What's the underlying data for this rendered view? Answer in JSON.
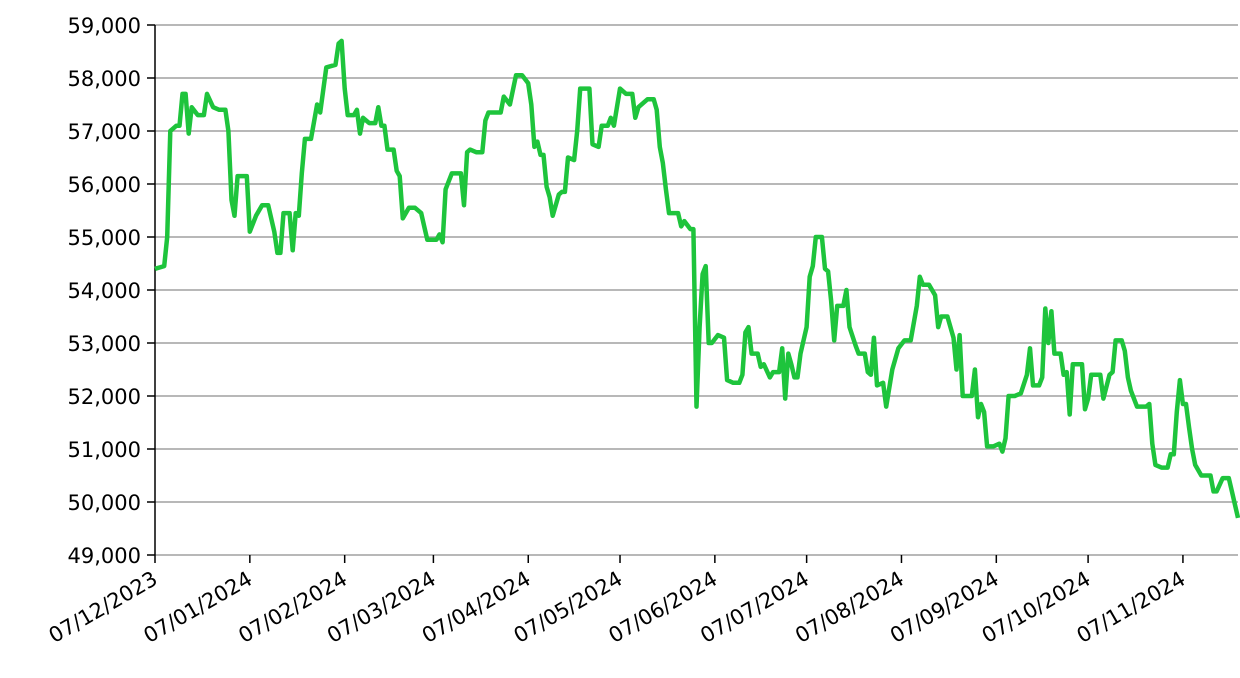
{
  "chart_data": {
    "type": "line",
    "x": [
      "2023-12-07",
      "2023-12-10",
      "2023-12-11",
      "2023-12-12",
      "2023-12-14",
      "2023-12-15",
      "2023-12-16",
      "2023-12-17",
      "2023-12-18",
      "2023-12-19",
      "2023-12-21",
      "2023-12-23",
      "2023-12-24",
      "2023-12-26",
      "2023-12-28",
      "2023-12-30",
      "2023-12-31",
      "2024-01-01",
      "2024-01-02",
      "2024-01-03",
      "2024-01-06",
      "2024-01-07",
      "2024-01-09",
      "2024-01-11",
      "2024-01-13",
      "2024-01-15",
      "2024-01-16",
      "2024-01-17",
      "2024-01-18",
      "2024-01-20",
      "2024-01-21",
      "2024-01-22",
      "2024-01-23",
      "2024-01-24",
      "2024-01-25",
      "2024-01-27",
      "2024-01-29",
      "2024-01-30",
      "2024-02-01",
      "2024-02-04",
      "2024-02-05",
      "2024-02-06",
      "2024-02-07",
      "2024-02-08",
      "2024-02-10",
      "2024-02-11",
      "2024-02-12",
      "2024-02-13",
      "2024-02-15",
      "2024-02-17",
      "2024-02-18",
      "2024-02-19",
      "2024-02-20",
      "2024-02-21",
      "2024-02-23",
      "2024-02-24",
      "2024-02-25",
      "2024-02-26",
      "2024-02-28",
      "2024-03-01",
      "2024-03-03",
      "2024-03-04",
      "2024-03-05",
      "2024-03-08",
      "2024-03-09",
      "2024-03-10",
      "2024-03-11",
      "2024-03-13",
      "2024-03-16",
      "2024-03-17",
      "2024-03-18",
      "2024-03-19",
      "2024-03-21",
      "2024-03-23",
      "2024-03-24",
      "2024-03-25",
      "2024-03-29",
      "2024-03-30",
      "2024-04-01",
      "2024-04-03",
      "2024-04-05",
      "2024-04-07",
      "2024-04-08",
      "2024-04-09",
      "2024-04-10",
      "2024-04-11",
      "2024-04-12",
      "2024-04-13",
      "2024-04-14",
      "2024-04-15",
      "2024-04-17",
      "2024-04-18",
      "2024-04-19",
      "2024-04-20",
      "2024-04-22",
      "2024-04-23",
      "2024-04-24",
      "2024-04-27",
      "2024-04-28",
      "2024-04-30",
      "2024-05-01",
      "2024-05-03",
      "2024-05-04",
      "2024-05-05",
      "2024-05-07",
      "2024-05-09",
      "2024-05-11",
      "2024-05-12",
      "2024-05-13",
      "2024-05-16",
      "2024-05-18",
      "2024-05-19",
      "2024-05-20",
      "2024-05-21",
      "2024-05-22",
      "2024-05-23",
      "2024-05-26",
      "2024-05-27",
      "2024-05-28",
      "2024-05-30",
      "2024-05-31",
      "2024-06-01",
      "2024-06-02",
      "2024-06-03",
      "2024-06-04",
      "2024-06-05",
      "2024-06-06",
      "2024-06-08",
      "2024-06-10",
      "2024-06-11",
      "2024-06-13",
      "2024-06-15",
      "2024-06-16",
      "2024-06-17",
      "2024-06-18",
      "2024-06-19",
      "2024-06-21",
      "2024-06-22",
      "2024-06-23",
      "2024-06-25",
      "2024-06-26",
      "2024-06-28",
      "2024-06-29",
      "2024-06-30",
      "2024-07-01",
      "2024-07-02",
      "2024-07-03",
      "2024-07-04",
      "2024-07-05",
      "2024-07-07",
      "2024-07-08",
      "2024-07-09",
      "2024-07-10",
      "2024-07-12",
      "2024-07-13",
      "2024-07-14",
      "2024-07-15",
      "2024-07-16",
      "2024-07-17",
      "2024-07-19",
      "2024-07-20",
      "2024-07-21",
      "2024-07-23",
      "2024-07-24",
      "2024-07-26",
      "2024-07-27",
      "2024-07-28",
      "2024-07-29",
      "2024-07-30",
      "2024-08-01",
      "2024-08-02",
      "2024-08-04",
      "2024-08-06",
      "2024-08-08",
      "2024-08-10",
      "2024-08-12",
      "2024-08-13",
      "2024-08-14",
      "2024-08-16",
      "2024-08-18",
      "2024-08-19",
      "2024-08-20",
      "2024-08-22",
      "2024-08-24",
      "2024-08-25",
      "2024-08-26",
      "2024-08-27",
      "2024-08-30",
      "2024-08-31",
      "2024-09-01",
      "2024-09-02",
      "2024-09-03",
      "2024-09-04",
      "2024-09-06",
      "2024-09-08",
      "2024-09-09",
      "2024-09-10",
      "2024-09-11",
      "2024-09-13",
      "2024-09-15",
      "2024-09-17",
      "2024-09-18",
      "2024-09-19",
      "2024-09-21",
      "2024-09-22",
      "2024-09-23",
      "2024-09-24",
      "2024-09-25",
      "2024-09-26",
      "2024-09-28",
      "2024-09-29",
      "2024-09-30",
      "2024-10-01",
      "2024-10-02",
      "2024-10-05",
      "2024-10-06",
      "2024-10-07",
      "2024-10-08",
      "2024-10-11",
      "2024-10-12",
      "2024-10-14",
      "2024-10-15",
      "2024-10-16",
      "2024-10-18",
      "2024-10-19",
      "2024-10-20",
      "2024-10-21",
      "2024-10-23",
      "2024-10-26",
      "2024-10-27",
      "2024-10-28",
      "2024-10-29",
      "2024-10-31",
      "2024-11-02",
      "2024-11-03",
      "2024-11-04",
      "2024-11-05",
      "2024-11-06",
      "2024-11-07",
      "2024-11-08",
      "2024-11-09",
      "2024-11-10",
      "2024-11-11",
      "2024-11-13",
      "2024-11-16",
      "2024-11-17",
      "2024-11-18",
      "2024-11-20",
      "2024-11-22",
      "2024-11-23",
      "2024-11-25"
    ],
    "series": [
      {
        "color": "#1ec43c",
        "values": [
          54400,
          54450,
          55000,
          57000,
          57100,
          57100,
          57700,
          57700,
          56950,
          57450,
          57300,
          57300,
          57700,
          57450,
          57400,
          57400,
          57000,
          55700,
          55400,
          56150,
          56150,
          55100,
          55400,
          55600,
          55600,
          55100,
          54700,
          54700,
          55450,
          55450,
          54750,
          55450,
          55400,
          56200,
          56850,
          56850,
          57500,
          57350,
          58200,
          58250,
          58650,
          58700,
          57800,
          57300,
          57300,
          57400,
          56950,
          57250,
          57150,
          57150,
          57450,
          57100,
          57100,
          56650,
          56650,
          56250,
          56150,
          55350,
          55550,
          55550,
          55450,
          55200,
          54950,
          54950,
          55050,
          54900,
          55900,
          56200,
          56200,
          55600,
          56600,
          56650,
          56600,
          56600,
          57200,
          57350,
          57350,
          57650,
          57500,
          58050,
          58050,
          57900,
          57500,
          56700,
          56800,
          56550,
          56550,
          55950,
          55750,
          55400,
          55800,
          55850,
          55850,
          56500,
          56450,
          57000,
          57800,
          57800,
          56750,
          56700,
          57100,
          57100,
          57250,
          57100,
          57800,
          57700,
          57700,
          57250,
          57450,
          57600,
          57600,
          57400,
          56700,
          56400,
          55900,
          55450,
          55450,
          55200,
          55300,
          55150,
          55150,
          51800,
          53300,
          54300,
          54450,
          53000,
          53000,
          53150,
          53100,
          52300,
          52250,
          52250,
          52400,
          53200,
          53300,
          52800,
          52800,
          52550,
          52600,
          52350,
          52450,
          52450,
          52900,
          51950,
          52800,
          52600,
          52350,
          52350,
          52800,
          53300,
          54250,
          54450,
          55000,
          55000,
          54400,
          54350,
          53800,
          53050,
          53700,
          53700,
          54000,
          53300,
          52950,
          52800,
          52800,
          52450,
          52400,
          53100,
          52200,
          52250,
          51800,
          52500,
          52900,
          53050,
          53050,
          53700,
          54250,
          54100,
          54100,
          53900,
          53300,
          53500,
          53500,
          53100,
          52500,
          53150,
          52000,
          52000,
          52500,
          51600,
          51850,
          51700,
          51050,
          51050,
          51100,
          50950,
          51200,
          52000,
          52000,
          52050,
          52400,
          52900,
          52200,
          52200,
          52350,
          53650,
          53000,
          53600,
          52800,
          52800,
          52400,
          52450,
          51650,
          52600,
          52600,
          51750,
          51950,
          52400,
          52400,
          51950,
          52400,
          52450,
          53050,
          53050,
          52850,
          52350,
          52100,
          51800,
          51800,
          51850,
          51100,
          50700,
          50650,
          50650,
          50900,
          50900,
          51700,
          52300,
          51850,
          51850,
          51400,
          51000,
          50700,
          50500,
          50500,
          50200,
          50200,
          50450,
          50450,
          50200,
          49700
        ]
      }
    ],
    "xlim": [
      "2023-12-07",
      "2024-11-25"
    ],
    "xticks": [
      {
        "value": "2023-12-07",
        "label": "07/12/2023"
      },
      {
        "value": "2024-01-07",
        "label": "07/01/2024"
      },
      {
        "value": "2024-02-07",
        "label": "07/02/2024"
      },
      {
        "value": "2024-03-07",
        "label": "07/03/2024"
      },
      {
        "value": "2024-04-07",
        "label": "07/04/2024"
      },
      {
        "value": "2024-05-07",
        "label": "07/05/2024"
      },
      {
        "value": "2024-06-07",
        "label": "07/06/2024"
      },
      {
        "value": "2024-07-07",
        "label": "07/07/2024"
      },
      {
        "value": "2024-08-07",
        "label": "07/08/2024"
      },
      {
        "value": "2024-09-07",
        "label": "07/09/2024"
      },
      {
        "value": "2024-10-07",
        "label": "07/10/2024"
      },
      {
        "value": "2024-11-07",
        "label": "07/11/2024"
      }
    ],
    "ylim": [
      49000,
      59000
    ],
    "yticks": [
      {
        "value": 49000,
        "label": "49,000"
      },
      {
        "value": 50000,
        "label": "50,000"
      },
      {
        "value": 51000,
        "label": "51,000"
      },
      {
        "value": 52000,
        "label": "52,000"
      },
      {
        "value": 53000,
        "label": "53,000"
      },
      {
        "value": 54000,
        "label": "54,000"
      },
      {
        "value": 55000,
        "label": "55,000"
      },
      {
        "value": 56000,
        "label": "56,000"
      },
      {
        "value": 57000,
        "label": "57,000"
      },
      {
        "value": 58000,
        "label": "58,000"
      },
      {
        "value": 59000,
        "label": "59,000"
      }
    ],
    "grid": true
  }
}
